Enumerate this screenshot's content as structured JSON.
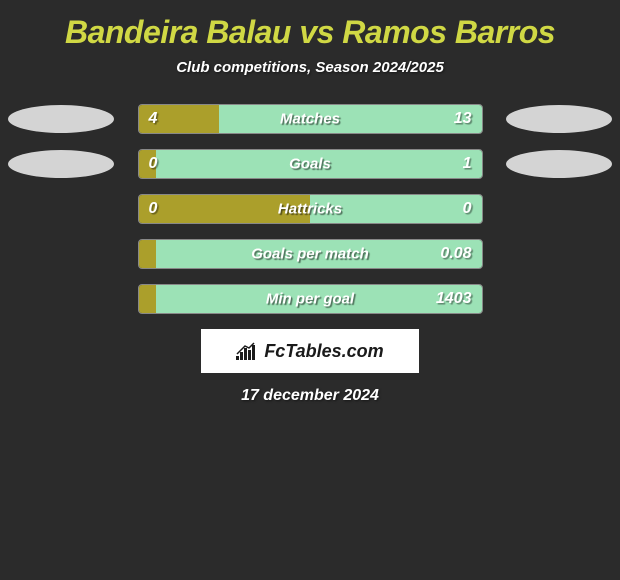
{
  "title_color": "#d0d844",
  "background_color": "#2b2b2b",
  "text_color": "#ffffff",
  "left_bar_color": "#ab9f2b",
  "right_bar_color": "#9ce2b6",
  "ellipse_color": "#d4d4d4",
  "title": {
    "player1": "Bandeira Balau",
    "vs": "vs",
    "player2": "Ramos Barros"
  },
  "subtitle": "Club competitions, Season 2024/2025",
  "stats": [
    {
      "label": "Matches",
      "left_value": "4",
      "right_value": "13",
      "left_pct": 23.5,
      "right_pct": 76.5,
      "show_ellipses": true
    },
    {
      "label": "Goals",
      "left_value": "0",
      "right_value": "1",
      "left_pct": 5,
      "right_pct": 95,
      "show_ellipses": true
    },
    {
      "label": "Hattricks",
      "left_value": "0",
      "right_value": "0",
      "left_pct": 50,
      "right_pct": 50,
      "show_ellipses": false
    },
    {
      "label": "Goals per match",
      "left_value": "",
      "right_value": "0.08",
      "left_pct": 5,
      "right_pct": 95,
      "show_ellipses": false
    },
    {
      "label": "Min per goal",
      "left_value": "",
      "right_value": "1403",
      "left_pct": 5,
      "right_pct": 95,
      "show_ellipses": false
    }
  ],
  "logo": "FcTables.com",
  "date": "17 december 2024"
}
